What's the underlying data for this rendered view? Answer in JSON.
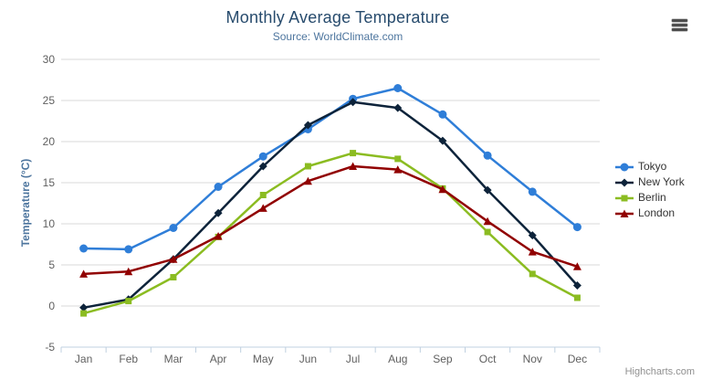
{
  "header": {
    "title": "Monthly Average Temperature",
    "subtitle": "Source: WorldClimate.com"
  },
  "credits": {
    "label": "Highcharts.com"
  },
  "context_menu": {
    "icon": "hamburger-icon"
  },
  "colors": {
    "title_text": "#274b6d",
    "subtitle_text": "#4d759e",
    "axis_title_text": "#4d759e",
    "axis_label_text": "#606060",
    "gridline": "#d8d8d8",
    "axis_line": "#c0d0e0",
    "legend_text": "#333333",
    "credits_text": "#909090"
  },
  "chart_data": {
    "type": "line",
    "title": "Monthly Average Temperature",
    "subtitle": "Source: WorldClimate.com",
    "xlabel": "",
    "ylabel": "Temperature (°C)",
    "categories": [
      "Jan",
      "Feb",
      "Mar",
      "Apr",
      "May",
      "Jun",
      "Jul",
      "Aug",
      "Sep",
      "Oct",
      "Nov",
      "Dec"
    ],
    "ylim": [
      -5,
      30
    ],
    "ytick_interval": 5,
    "grid": true,
    "legend_position": "right",
    "series": [
      {
        "name": "Tokyo",
        "color": "#2f7ed8",
        "symbol": "circle",
        "values": [
          7.0,
          6.9,
          9.5,
          14.5,
          18.2,
          21.5,
          25.2,
          26.5,
          23.3,
          18.3,
          13.9,
          9.6
        ]
      },
      {
        "name": "New York",
        "color": "#0d233a",
        "symbol": "diamond",
        "values": [
          -0.2,
          0.8,
          5.7,
          11.3,
          17.0,
          22.0,
          24.8,
          24.1,
          20.1,
          14.1,
          8.6,
          2.5
        ]
      },
      {
        "name": "Berlin",
        "color": "#8bbc21",
        "symbol": "square",
        "values": [
          -0.9,
          0.6,
          3.5,
          8.4,
          13.5,
          17.0,
          18.6,
          17.9,
          14.3,
          9.0,
          3.9,
          1.0
        ]
      },
      {
        "name": "London",
        "color": "#910000",
        "symbol": "triangle",
        "values": [
          3.9,
          4.2,
          5.7,
          8.5,
          11.9,
          15.2,
          17.0,
          16.6,
          14.2,
          10.3,
          6.6,
          4.8
        ]
      }
    ]
  }
}
